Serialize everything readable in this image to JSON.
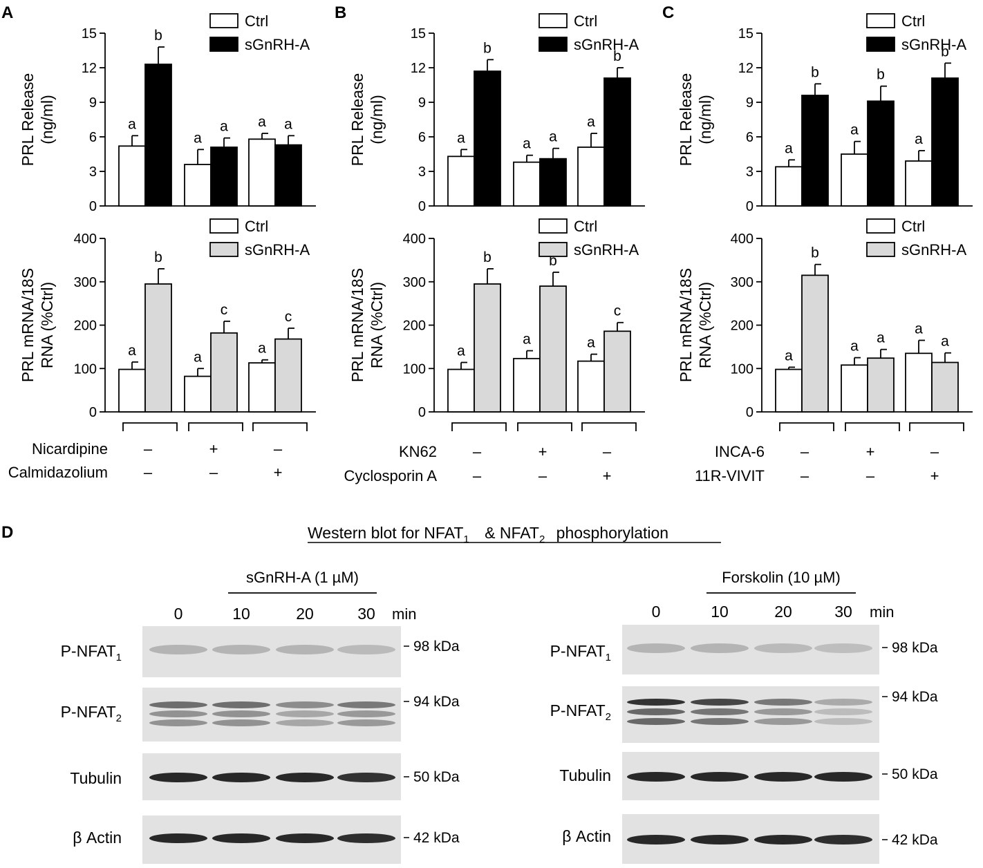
{
  "panel_letters": [
    "A",
    "B",
    "C",
    "D"
  ],
  "legend": {
    "ctrl": "Ctrl",
    "treat": "sGnRH-A"
  },
  "prl_release_label": [
    "PRL Release",
    "(ng/ml)"
  ],
  "mrna_label": [
    "PRL mRNA/18S",
    "RNA (%Ctrl)"
  ],
  "colors": {
    "ctrl": "#ffffff",
    "release_treat": "#000000",
    "mrna_treat": "#d9d9d9"
  },
  "chart_data": [
    {
      "panel": "A",
      "type": "bar",
      "metric": "release",
      "ylim": [
        0,
        15
      ],
      "yticks": [
        "0",
        "3",
        "6",
        "9",
        "12",
        "15"
      ],
      "series": [
        {
          "name": "Ctrl",
          "values": [
            5.2,
            3.6,
            5.8
          ],
          "errors": [
            0.9,
            1.3,
            0.5
          ],
          "letters": [
            "a",
            "a",
            "a"
          ]
        },
        {
          "name": "sGnRH-A",
          "values": [
            12.3,
            5.1,
            5.3
          ],
          "errors": [
            1.5,
            0.8,
            0.8
          ],
          "letters": [
            "b",
            "a",
            "a"
          ]
        }
      ]
    },
    {
      "panel": "A",
      "type": "bar",
      "metric": "mrna",
      "ylim": [
        0,
        400
      ],
      "yticks": [
        "0",
        "100",
        "200",
        "300",
        "400"
      ],
      "series": [
        {
          "name": "Ctrl",
          "values": [
            98,
            82,
            113
          ],
          "errors": [
            17,
            18,
            7
          ],
          "letters": [
            "a",
            "a",
            "a"
          ]
        },
        {
          "name": "sGnRH-A",
          "values": [
            295,
            182,
            168
          ],
          "errors": [
            35,
            27,
            25
          ],
          "letters": [
            "b",
            "c",
            "c"
          ]
        }
      ],
      "treatments": [
        {
          "label": "Nicardipine",
          "signs": [
            "–",
            "+",
            "–"
          ]
        },
        {
          "label": "Calmidazolium",
          "signs": [
            "–",
            "–",
            "+"
          ]
        }
      ]
    },
    {
      "panel": "B",
      "type": "bar",
      "metric": "release",
      "ylim": [
        0,
        15
      ],
      "yticks": [
        "0",
        "3",
        "6",
        "9",
        "12",
        "15"
      ],
      "series": [
        {
          "name": "Ctrl",
          "values": [
            4.3,
            3.8,
            5.1
          ],
          "errors": [
            0.6,
            0.6,
            1.2
          ],
          "letters": [
            "a",
            "a",
            "a"
          ]
        },
        {
          "name": "sGnRH-A",
          "values": [
            11.7,
            4.1,
            11.1
          ],
          "errors": [
            1.0,
            0.9,
            0.9
          ],
          "letters": [
            "b",
            "a",
            "b"
          ]
        }
      ]
    },
    {
      "panel": "B",
      "type": "bar",
      "metric": "mrna",
      "ylim": [
        0,
        400
      ],
      "yticks": [
        "0",
        "100",
        "200",
        "300",
        "400"
      ],
      "series": [
        {
          "name": "Ctrl",
          "values": [
            98,
            123,
            117
          ],
          "errors": [
            16,
            18,
            16
          ],
          "letters": [
            "a",
            "a",
            "a"
          ]
        },
        {
          "name": "sGnRH-A",
          "values": [
            295,
            290,
            186
          ],
          "errors": [
            35,
            32,
            20
          ],
          "letters": [
            "b",
            "b",
            "c"
          ]
        }
      ],
      "treatments": [
        {
          "label": "KN62",
          "signs": [
            "–",
            "+",
            "–"
          ]
        },
        {
          "label": "Cyclosporin A",
          "signs": [
            "–",
            "–",
            "+"
          ]
        }
      ]
    },
    {
      "panel": "C",
      "type": "bar",
      "metric": "release",
      "ylim": [
        0,
        15
      ],
      "yticks": [
        "0",
        "3",
        "6",
        "9",
        "12",
        "15"
      ],
      "series": [
        {
          "name": "Ctrl",
          "values": [
            3.4,
            4.5,
            3.9
          ],
          "errors": [
            0.6,
            1.1,
            0.9
          ],
          "letters": [
            "a",
            "a",
            "a"
          ]
        },
        {
          "name": "sGnRH-A",
          "values": [
            9.6,
            9.1,
            11.1
          ],
          "errors": [
            1.0,
            1.3,
            1.3
          ],
          "letters": [
            "b",
            "b",
            "b"
          ]
        }
      ]
    },
    {
      "panel": "C",
      "type": "bar",
      "metric": "mrna",
      "ylim": [
        0,
        400
      ],
      "yticks": [
        "0",
        "100",
        "200",
        "300",
        "400"
      ],
      "series": [
        {
          "name": "Ctrl",
          "values": [
            98,
            108,
            135
          ],
          "errors": [
            5,
            17,
            30
          ],
          "letters": [
            "a",
            "a",
            "a"
          ]
        },
        {
          "name": "sGnRH-A",
          "values": [
            315,
            124,
            114
          ],
          "errors": [
            25,
            20,
            22
          ],
          "letters": [
            "b",
            "a",
            "a"
          ]
        }
      ],
      "treatments": [
        {
          "label": "INCA-6",
          "signs": [
            "–",
            "+",
            "–"
          ]
        },
        {
          "label": "11R-VIVIT",
          "signs": [
            "–",
            "–",
            "+"
          ]
        }
      ]
    }
  ],
  "western": {
    "title": {
      "text1": "Western blot for NFAT",
      "sub1": "1",
      "amp": "&",
      "text2": "NFAT",
      "sub2": "2",
      "text3": "phosphorylation"
    },
    "blots": [
      {
        "treatment": "sGnRH-A  (1 µM)",
        "times": [
          "0",
          "10",
          "20",
          "30"
        ],
        "time_unit": "min",
        "rows": [
          {
            "label": "P-NFAT",
            "sub": "1",
            "kda": "98 kDa",
            "intensity": [
              0.25,
              0.25,
              0.25,
              0.22
            ]
          },
          {
            "label": "P-NFAT",
            "sub": "2",
            "kda": "94 kDa",
            "intensity": [
              0.6,
              0.6,
              0.45,
              0.55
            ]
          },
          {
            "label": "Tubulin",
            "sub": "",
            "kda": "50 kDa",
            "intensity": [
              0.95,
              0.95,
              0.95,
              0.9
            ]
          },
          {
            "label": "β Actin",
            "sub": "",
            "kda": "42 kDa",
            "intensity": [
              0.95,
              0.95,
              0.95,
              0.92
            ]
          }
        ]
      },
      {
        "treatment": "Forskolin (10 µM)",
        "times": [
          "0",
          "10",
          "20",
          "30"
        ],
        "time_unit": "min",
        "rows": [
          {
            "label": "P-NFAT",
            "sub": "1",
            "kda": "98 kDa",
            "intensity": [
              0.25,
              0.25,
              0.22,
              0.2
            ]
          },
          {
            "label": "P-NFAT",
            "sub": "2",
            "kda": "94 kDa",
            "intensity": [
              0.9,
              0.8,
              0.55,
              0.3
            ]
          },
          {
            "label": "Tubulin",
            "sub": "",
            "kda": "50 kDa",
            "intensity": [
              0.95,
              0.95,
              0.95,
              0.95
            ]
          },
          {
            "label": "β Actin",
            "sub": "",
            "kda": "42 kDa",
            "intensity": [
              0.95,
              0.95,
              0.95,
              0.92
            ]
          }
        ]
      }
    ]
  }
}
